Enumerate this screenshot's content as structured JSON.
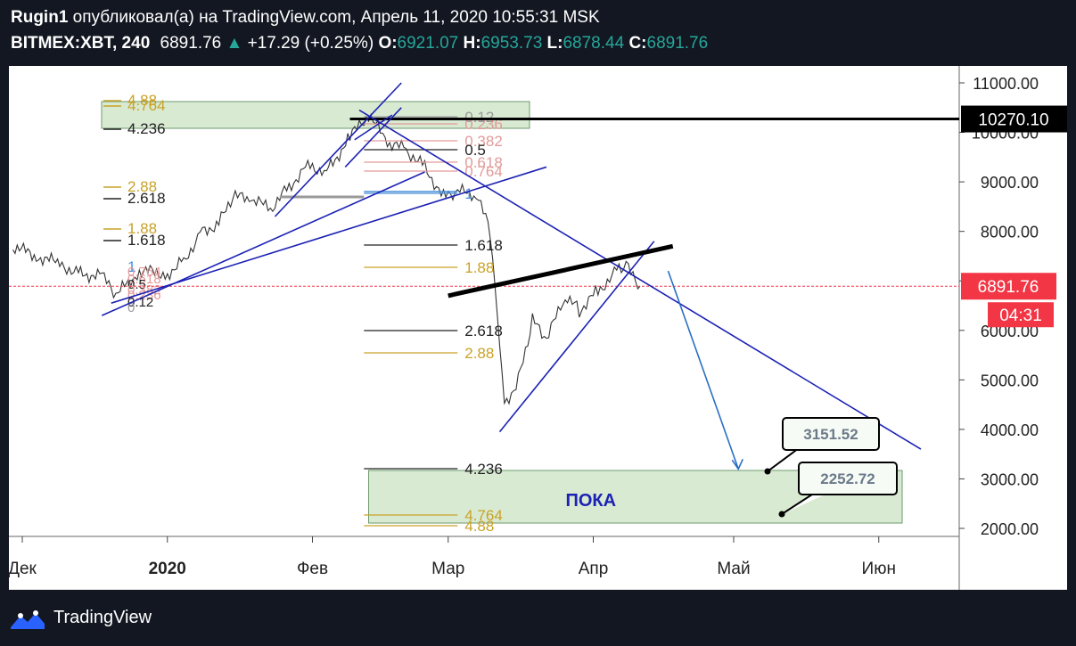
{
  "header": {
    "author": "Rugin1",
    "published": " опубликовал(а) на TradingView.com, Апрель 11, 2020 10:55:31 MSK",
    "symbol": "BITMEX:XBT, 240",
    "last": "6891.76",
    "up_arrow": "▲",
    "change": "+17.29 (+0.25%)",
    "o_label": "O:",
    "o_value": "6921.07",
    "h_label": "H:",
    "h_value": "6953.73",
    "l_label": "L:",
    "l_value": "6878.44",
    "c_label": "C:",
    "c_value": "6891.76"
  },
  "footer": {
    "brand": "TradingView",
    "logo_icon": "tradingview-logo-icon"
  },
  "colors": {
    "background": "#131722",
    "up": "#26a69a",
    "current_price": "#f23645",
    "drawn_line": "#1c22b4",
    "zone_fill": "#d9ead3"
  },
  "chart_data": {
    "type": "line",
    "symbol": "BITMEX:XBT",
    "interval": "240",
    "ylim": [
      1600,
      11500
    ],
    "y_ticks": [
      "11000.00",
      "10000.00",
      "9000.00",
      "8000.00",
      "7000.00",
      "6000.00",
      "5000.00",
      "4000.00",
      "3000.00",
      "2000.00"
    ],
    "x_ticks": [
      "Дек",
      "2020",
      "Фев",
      "Мар",
      "Апр",
      "Май",
      "Июн"
    ],
    "price_path": {
      "x": [
        "2019-11-29",
        "2019-12-04",
        "2019-12-09",
        "2019-12-13",
        "2019-12-18",
        "2019-12-21",
        "2019-12-26",
        "2020-01-01",
        "2020-01-05",
        "2020-01-08",
        "2020-01-12",
        "2020-01-15",
        "2020-01-19",
        "2020-01-23",
        "2020-01-27",
        "2020-01-31",
        "2020-02-04",
        "2020-02-09",
        "2020-02-13",
        "2020-02-17",
        "2020-02-21",
        "2020-02-25",
        "2020-02-29",
        "2020-03-03",
        "2020-03-07",
        "2020-03-10",
        "2020-03-12",
        "2020-03-13",
        "2020-03-16",
        "2020-03-19",
        "2020-03-22",
        "2020-03-26",
        "2020-03-29",
        "2020-04-02",
        "2020-04-06",
        "2020-04-08",
        "2020-04-11"
      ],
      "y": [
        7700,
        7500,
        7350,
        7150,
        7100,
        6700,
        7200,
        7150,
        7450,
        8000,
        8150,
        8700,
        8650,
        8450,
        8900,
        9350,
        9200,
        9900,
        10350,
        9800,
        9650,
        9300,
        8700,
        8800,
        8750,
        8000,
        5800,
        4500,
        5000,
        6200,
        5800,
        6700,
        6400,
        6800,
        7200,
        7300,
        6891.76
      ]
    },
    "horizontal_lines": [
      10270.1
    ],
    "fib_levels": [
      "0",
      "0.12",
      "0.236",
      "0.382",
      "0.5",
      "0.618",
      "0.764",
      "1",
      "1.618",
      "1.88",
      "2.618",
      "2.88",
      "4.236",
      "4.764",
      "4.88"
    ],
    "fib_levels_right": [
      "0.12",
      "0.236",
      "0.382",
      "0.5",
      "0.618",
      "0.764",
      "1",
      "1.618",
      "1.88",
      "2.618",
      "2.88",
      "4.236",
      "4.764",
      "4.88"
    ],
    "fib_levels_upper": [
      "4.88",
      "4.764",
      "4.236",
      "2.88",
      "2.618",
      "1.88",
      "1.618",
      "1"
    ],
    "fib_levels_lower": [
      "0.764",
      "0.618",
      "0.5",
      "0.382",
      "0.236",
      "0.12",
      "0"
    ],
    "target_zone_label": "ПОКА",
    "price_callouts": [
      "3151.52",
      "2252.72"
    ],
    "current_price_label": "6891.76",
    "countdown": "04:31",
    "line_price_label": "10270.10"
  }
}
